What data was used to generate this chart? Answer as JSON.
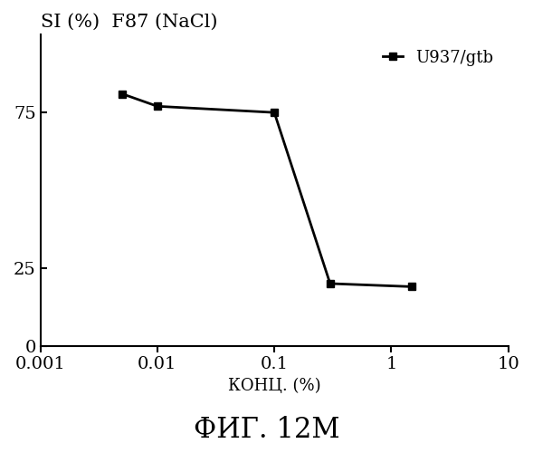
{
  "title": "SI (%)  F87 (NaCl)",
  "xlabel": "КОНЦ. (%)",
  "ylabel": "",
  "caption": "ФИГ. 12М",
  "series": [
    {
      "label": "U937/gtb",
      "x": [
        0.005,
        0.01,
        0.1,
        0.3,
        1.5
      ],
      "y": [
        81,
        77,
        75,
        20,
        19
      ],
      "color": "#000000",
      "marker": "s",
      "linewidth": 2,
      "markersize": 6
    }
  ],
  "xlim": [
    0.001,
    10
  ],
  "ylim": [
    0,
    100
  ],
  "yticks": [
    0,
    25,
    75
  ],
  "xticks": [
    0.001,
    0.01,
    0.1,
    1,
    10
  ],
  "xticklabels": [
    "0.001",
    "0.01",
    "0.1",
    "1",
    "10"
  ],
  "background_color": "#ffffff",
  "legend_loc": "upper right",
  "title_fontsize": 15,
  "label_fontsize": 13,
  "tick_fontsize": 14,
  "caption_fontsize": 22,
  "font_family": "serif"
}
